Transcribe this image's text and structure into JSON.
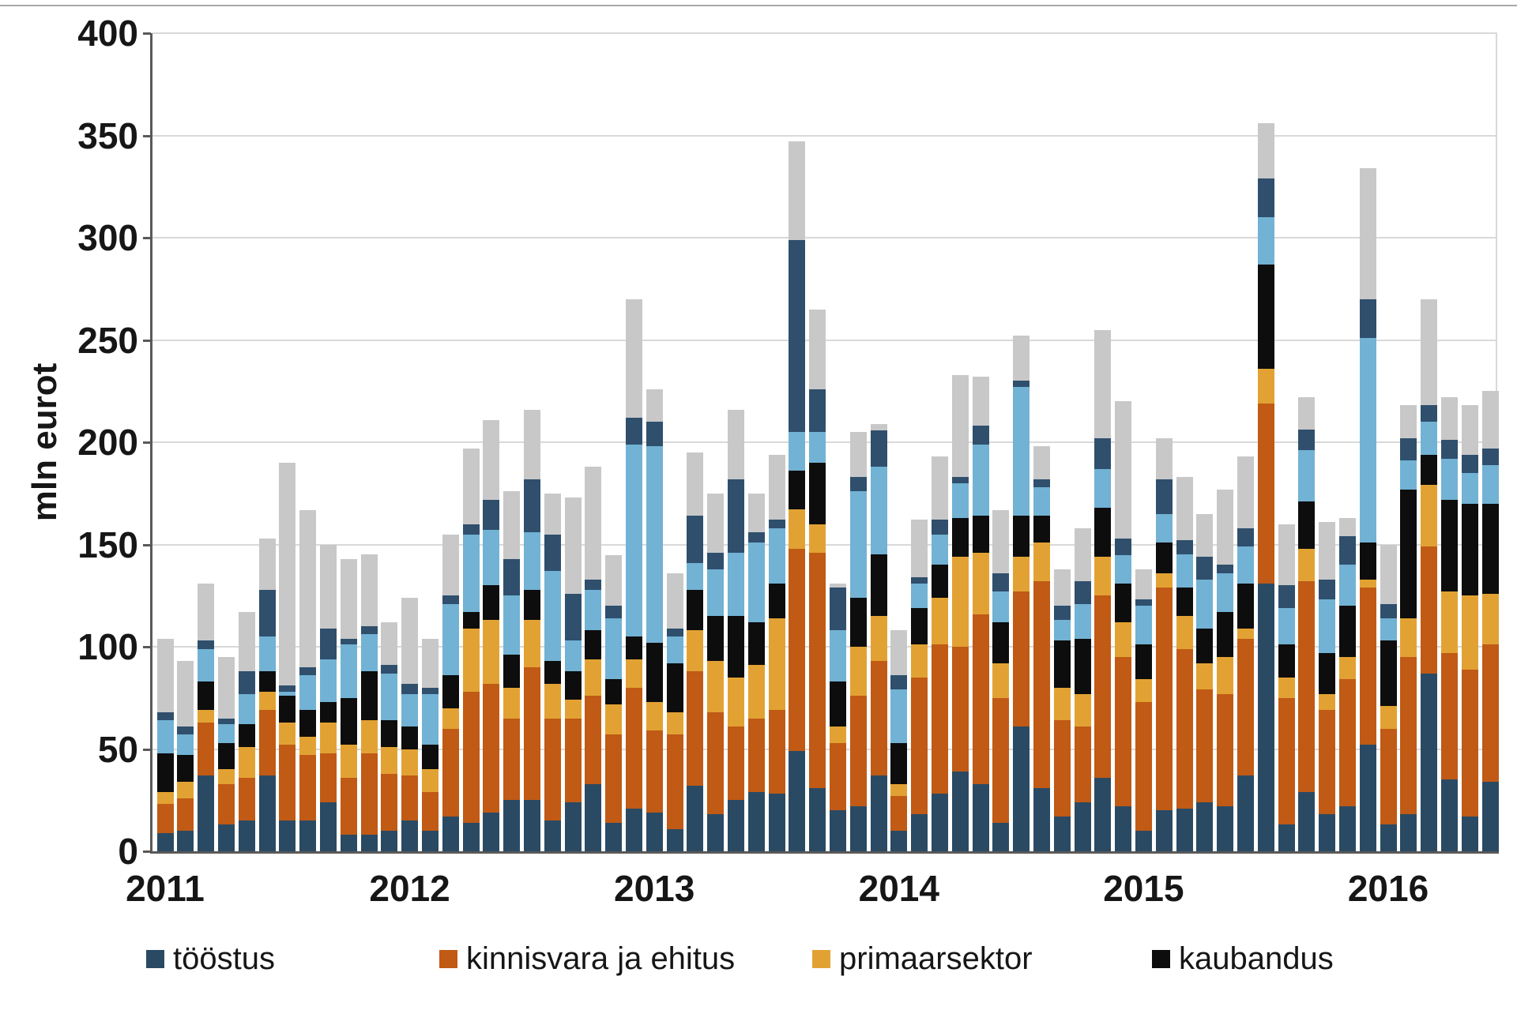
{
  "page": {
    "background": "#ffffff"
  },
  "y_axis": {
    "title": "mln eurot",
    "ticks": [
      0,
      50,
      100,
      150,
      200,
      250,
      300,
      350,
      400
    ]
  },
  "x_axis": {
    "year_labels": [
      "2011",
      "2012",
      "2013",
      "2014",
      "2015",
      "2016"
    ],
    "bars_per_year": [
      12,
      12,
      12,
      12,
      12,
      6
    ]
  },
  "legend": {
    "items": [
      {
        "label": "tööstus",
        "color": "#2a4a63"
      },
      {
        "label": "kinnisvara ja ehitus",
        "color": "#c05a15"
      },
      {
        "label": "primaarsektor",
        "color": "#e2a233"
      },
      {
        "label": "kaubandus",
        "color": "#0d0d0d"
      }
    ]
  },
  "colors": {
    "grid": "#d9d9d9",
    "axis": "#595959",
    "text": "#161616",
    "unlabeled_lightblue": "#72b2d4",
    "unlabeled_darknavy": "#2f4f6d",
    "unlabeled_gray": "#c8c8c8"
  },
  "chart_data": {
    "type": "bar",
    "stacked": true,
    "title": "",
    "ylabel": "mln eurot",
    "ylim": [
      0,
      400
    ],
    "ytick_step": 50,
    "grid": "horizontal-every-50",
    "legend_position": "bottom",
    "n_bars": 66,
    "x_start": "2011-01",
    "x_end": "2016-06",
    "note_series_order": "series listed bottom to top of stack; values in mln eurot per month",
    "series": [
      {
        "key": "toostus",
        "name": "tööstus",
        "in_legend": true,
        "color": "#2a4a63",
        "values": [
          9,
          10,
          37,
          13,
          15,
          37,
          15,
          15,
          24,
          8,
          8,
          10,
          15,
          10,
          17,
          14,
          19,
          25,
          25,
          15,
          24,
          33,
          14,
          21,
          19,
          11,
          32,
          18,
          25,
          29,
          28,
          49,
          31,
          20,
          22,
          37,
          10,
          18,
          28,
          39,
          33,
          14,
          61,
          31,
          17,
          24,
          36,
          22,
          10,
          20,
          21,
          24,
          22,
          37,
          131,
          13,
          29,
          18,
          22,
          52,
          13,
          18,
          87,
          35,
          17,
          34
        ]
      },
      {
        "key": "kinnisvara",
        "name": "kinnisvara ja ehitus",
        "in_legend": true,
        "color": "#c05a15",
        "values": [
          14,
          16,
          26,
          20,
          21,
          32,
          37,
          32,
          24,
          28,
          40,
          28,
          22,
          19,
          43,
          64,
          63,
          40,
          65,
          50,
          41,
          43,
          43,
          59,
          40,
          46,
          56,
          50,
          36,
          36,
          41,
          99,
          115,
          33,
          54,
          56,
          17,
          67,
          73,
          61,
          83,
          61,
          66,
          101,
          47,
          37,
          89,
          73,
          63,
          109,
          78,
          55,
          55,
          67,
          88,
          62,
          103,
          51,
          62,
          77,
          47,
          77,
          62,
          62,
          72,
          67
        ]
      },
      {
        "key": "primaarsektor",
        "name": "primaarsektor",
        "in_legend": true,
        "color": "#e2a233",
        "values": [
          6,
          8,
          6,
          7,
          15,
          9,
          11,
          9,
          15,
          16,
          16,
          13,
          13,
          11,
          10,
          31,
          31,
          15,
          23,
          17,
          9,
          18,
          15,
          14,
          14,
          11,
          20,
          25,
          24,
          26,
          45,
          19,
          14,
          8,
          24,
          22,
          6,
          16,
          23,
          44,
          30,
          17,
          17,
          19,
          16,
          16,
          19,
          17,
          11,
          7,
          16,
          13,
          18,
          5,
          17,
          10,
          16,
          8,
          11,
          4,
          11,
          19,
          30,
          30,
          36,
          25
        ]
      },
      {
        "key": "kaubandus",
        "name": "kaubandus",
        "in_legend": true,
        "color": "#0d0d0d",
        "values": [
          19,
          13,
          14,
          13,
          11,
          10,
          13,
          13,
          10,
          23,
          24,
          13,
          11,
          12,
          16,
          8,
          17,
          16,
          15,
          11,
          14,
          14,
          12,
          11,
          29,
          24,
          20,
          22,
          30,
          21,
          17,
          19,
          30,
          22,
          24,
          30,
          20,
          18,
          16,
          19,
          18,
          20,
          20,
          13,
          23,
          27,
          24,
          19,
          17,
          15,
          14,
          17,
          22,
          22,
          51,
          16,
          23,
          20,
          25,
          18,
          32,
          63,
          15,
          45,
          45,
          44
        ]
      },
      {
        "key": "series5",
        "name": "",
        "in_legend": false,
        "color": "#72b2d4",
        "values": [
          16,
          10,
          16,
          9,
          15,
          17,
          2,
          17,
          21,
          26,
          18,
          23,
          16,
          25,
          35,
          38,
          27,
          29,
          28,
          44,
          15,
          20,
          30,
          94,
          96,
          13,
          13,
          23,
          31,
          39,
          27,
          19,
          15,
          25,
          52,
          43,
          26,
          12,
          15,
          17,
          35,
          15,
          63,
          14,
          10,
          17,
          19,
          14,
          19,
          14,
          16,
          24,
          19,
          18,
          23,
          18,
          25,
          26,
          20,
          100,
          11,
          14,
          16,
          20,
          15,
          19
        ]
      },
      {
        "key": "series6",
        "name": "",
        "in_legend": false,
        "color": "#2f4f6d",
        "values": [
          4,
          4,
          4,
          3,
          11,
          23,
          3,
          4,
          15,
          3,
          4,
          4,
          5,
          3,
          4,
          5,
          15,
          18,
          26,
          18,
          23,
          5,
          6,
          13,
          12,
          4,
          23,
          8,
          36,
          5,
          4,
          94,
          21,
          21,
          7,
          18,
          7,
          3,
          7,
          3,
          9,
          9,
          3,
          4,
          7,
          11,
          15,
          8,
          3,
          17,
          7,
          11,
          4,
          9,
          19,
          11,
          10,
          10,
          14,
          19,
          7,
          11,
          8,
          9,
          9,
          8
        ]
      },
      {
        "key": "series7",
        "name": "",
        "in_legend": false,
        "color": "#c8c8c8",
        "values": [
          36,
          32,
          28,
          30,
          29,
          25,
          109,
          77,
          41,
          39,
          35,
          21,
          42,
          24,
          30,
          37,
          39,
          33,
          34,
          20,
          47,
          55,
          25,
          58,
          16,
          27,
          31,
          29,
          34,
          19,
          32,
          48,
          39,
          2,
          22,
          3,
          22,
          28,
          31,
          50,
          24,
          31,
          22,
          16,
          18,
          26,
          53,
          67,
          15,
          20,
          31,
          21,
          37,
          35,
          27,
          30,
          16,
          28,
          9,
          64,
          29,
          16,
          52,
          21,
          24,
          28
        ]
      }
    ]
  }
}
